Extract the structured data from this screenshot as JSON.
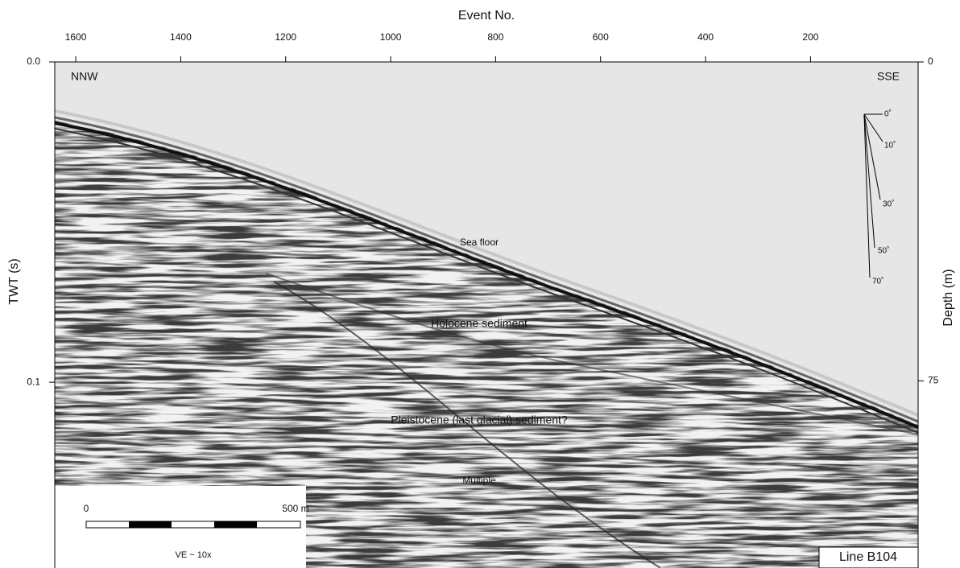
{
  "chart_data": {
    "type": "seismic-section",
    "x_label": "Event No.",
    "y_label": "TWT (s)",
    "y2_label": "Depth (m)",
    "xlim": [
      1640,
      -5
    ],
    "xticks": [
      1600,
      1400,
      1200,
      1000,
      800,
      600,
      400,
      200
    ],
    "ylim": [
      0,
      0.158
    ],
    "yticks": [
      {
        "value": 0,
        "label": "0.0"
      },
      0.1
    ],
    "y2lim": [
      0,
      119
    ],
    "y2ticks": [
      0,
      75
    ],
    "annotations": [
      "NNW",
      "SSE",
      "Sea floor",
      "Holocene sediment",
      "Pleistocene (last glacial) sediment?",
      "Multiple",
      "Line B104"
    ],
    "dip_labels": [
      "0˚",
      "10˚",
      "30˚",
      "50˚",
      "70˚"
    ],
    "scale_bar": [
      "0",
      "500 m"
    ],
    "scale_note": "VE ~ 10x"
  }
}
